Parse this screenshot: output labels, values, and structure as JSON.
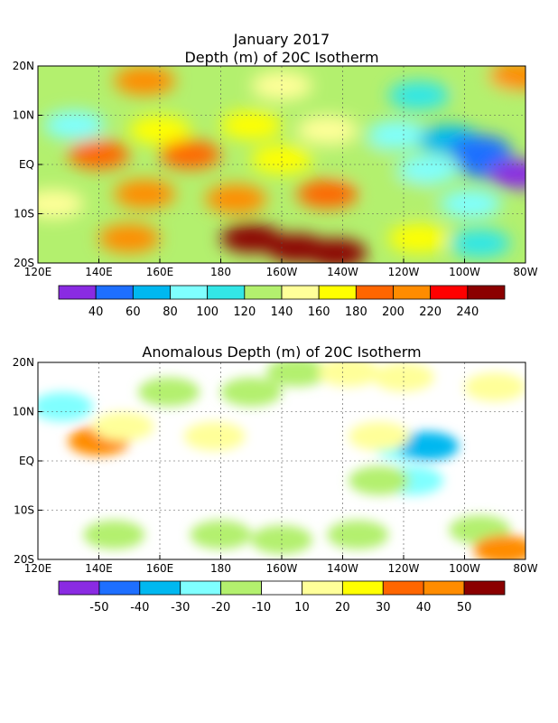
{
  "title": "January 2017",
  "chart_data": [
    {
      "type": "heatmap",
      "title": "Depth (m) of 20C Isotherm",
      "lon_ticks": [
        "120E",
        "140E",
        "160E",
        "180",
        "160W",
        "140W",
        "120W",
        "100W",
        "80W"
      ],
      "lat_ticks": [
        "20N",
        "10N",
        "EQ",
        "10S",
        "20S"
      ],
      "lon_range": [
        120,
        280
      ],
      "lat_range": [
        -20,
        20
      ],
      "colorbar": {
        "labels": [
          "40",
          "60",
          "80",
          "100",
          "120",
          "140",
          "160",
          "180",
          "200",
          "220",
          "240"
        ],
        "colors": [
          "#8a2be2",
          "#1e6fff",
          "#00b8f0",
          "#7fffff",
          "#33e6e6",
          "#b3f06e",
          "#ffff99",
          "#ffff00",
          "#ff6600",
          "#ff8c00",
          "#ff0000",
          "#8b0000"
        ]
      },
      "regions": [
        {
          "lon": 155,
          "lat": 17,
          "value": 215
        },
        {
          "lon": 200,
          "lat": 16,
          "value": 150
        },
        {
          "lon": 245,
          "lat": 14,
          "value": 100
        },
        {
          "lon": 268,
          "lat": 16,
          "value": 120
        },
        {
          "lon": 278,
          "lat": 18,
          "value": 215
        },
        {
          "lon": 132,
          "lat": 8,
          "value": 85
        },
        {
          "lon": 160,
          "lat": 7,
          "value": 160
        },
        {
          "lon": 190,
          "lat": 8,
          "value": 170
        },
        {
          "lon": 215,
          "lat": 7,
          "value": 145
        },
        {
          "lon": 238,
          "lat": 6,
          "value": 95
        },
        {
          "lon": 255,
          "lat": 5,
          "value": 60
        },
        {
          "lon": 265,
          "lat": 3,
          "value": 50
        },
        {
          "lon": 140,
          "lat": 2,
          "value": 190
        },
        {
          "lon": 170,
          "lat": 2,
          "value": 185
        },
        {
          "lon": 200,
          "lat": 1,
          "value": 165
        },
        {
          "lon": 225,
          "lat": 1,
          "value": 130
        },
        {
          "lon": 248,
          "lat": -1,
          "value": 80
        },
        {
          "lon": 268,
          "lat": 0,
          "value": 40
        },
        {
          "lon": 278,
          "lat": -2,
          "value": 35
        },
        {
          "lon": 155,
          "lat": -6,
          "value": 215
        },
        {
          "lon": 185,
          "lat": -7,
          "value": 215
        },
        {
          "lon": 215,
          "lat": -6,
          "value": 185
        },
        {
          "lon": 240,
          "lat": -6,
          "value": 125
        },
        {
          "lon": 262,
          "lat": -8,
          "value": 85
        },
        {
          "lon": 150,
          "lat": -15,
          "value": 210
        },
        {
          "lon": 190,
          "lat": -15,
          "value": 240
        },
        {
          "lon": 205,
          "lat": -17,
          "value": 250
        },
        {
          "lon": 218,
          "lat": -18,
          "value": 250
        },
        {
          "lon": 245,
          "lat": -15,
          "value": 175
        },
        {
          "lon": 265,
          "lat": -16,
          "value": 110
        },
        {
          "lon": 125,
          "lat": -8,
          "value": 150
        }
      ]
    },
    {
      "type": "heatmap",
      "title": "Anomalous Depth (m) of 20C Isotherm",
      "lon_ticks": [
        "120E",
        "140E",
        "160E",
        "180",
        "160W",
        "140W",
        "120W",
        "100W",
        "80W"
      ],
      "lat_ticks": [
        "20N",
        "10N",
        "EQ",
        "10S",
        "20S"
      ],
      "lon_range": [
        120,
        280
      ],
      "lat_range": [
        -20,
        20
      ],
      "colorbar": {
        "labels": [
          "-50",
          "-40",
          "-30",
          "-20",
          "-10",
          "10",
          "20",
          "30",
          "40",
          "50"
        ],
        "colors": [
          "#8a2be2",
          "#1e6fff",
          "#00b8f0",
          "#7fffff",
          "#b3f06e",
          "#ffffff",
          "#ffff99",
          "#ffff00",
          "#ff6600",
          "#ff8c00",
          "#8b0000"
        ]
      },
      "regions": [
        {
          "lon": 140,
          "lat": 4,
          "value": 40
        },
        {
          "lon": 128,
          "lat": 11,
          "value": -30
        },
        {
          "lon": 163,
          "lat": 14,
          "value": -15
        },
        {
          "lon": 190,
          "lat": 14,
          "value": -15
        },
        {
          "lon": 205,
          "lat": 18,
          "value": -20
        },
        {
          "lon": 222,
          "lat": 18,
          "value": 15
        },
        {
          "lon": 240,
          "lat": 17,
          "value": 15
        },
        {
          "lon": 270,
          "lat": 15,
          "value": 15
        },
        {
          "lon": 240,
          "lat": 3,
          "value": -30
        },
        {
          "lon": 248,
          "lat": 3,
          "value": -40
        },
        {
          "lon": 232,
          "lat": 5,
          "value": 15
        },
        {
          "lon": 243,
          "lat": -4,
          "value": -30
        },
        {
          "lon": 232,
          "lat": -4,
          "value": -20
        },
        {
          "lon": 225,
          "lat": -15,
          "value": -15
        },
        {
          "lon": 180,
          "lat": -15,
          "value": -15
        },
        {
          "lon": 145,
          "lat": -15,
          "value": -15
        },
        {
          "lon": 200,
          "lat": -16,
          "value": -15
        },
        {
          "lon": 265,
          "lat": -14,
          "value": -15
        },
        {
          "lon": 273,
          "lat": -18,
          "value": 40
        },
        {
          "lon": 178,
          "lat": 5,
          "value": 15
        },
        {
          "lon": 148,
          "lat": 7,
          "value": 15
        }
      ]
    }
  ]
}
